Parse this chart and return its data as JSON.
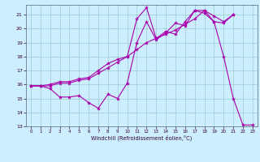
{
  "xlabel": "Windchill (Refroidissement éolien,°C)",
  "bg_color": "#cceeff",
  "line_color": "#aa00aa",
  "grid_color": "#99cccc",
  "xlim": [
    -0.5,
    23.5
  ],
  "ylim": [
    13,
    21.7
  ],
  "yticks": [
    13,
    14,
    15,
    16,
    17,
    18,
    19,
    20,
    21
  ],
  "xticks": [
    0,
    1,
    2,
    3,
    4,
    5,
    6,
    7,
    8,
    9,
    10,
    11,
    12,
    13,
    14,
    15,
    16,
    17,
    18,
    19,
    20,
    21,
    22,
    23
  ],
  "s1_x": [
    0,
    1,
    2,
    3,
    4,
    5,
    6,
    7,
    8,
    9,
    10,
    11,
    12,
    13,
    14,
    15,
    16,
    17,
    18,
    19,
    20,
    21,
    22,
    23
  ],
  "s1_y": [
    15.9,
    15.9,
    15.7,
    15.1,
    15.1,
    15.2,
    14.7,
    14.3,
    15.3,
    15.0,
    16.1,
    19.0,
    20.5,
    19.2,
    19.7,
    20.4,
    20.2,
    21.3,
    21.1,
    20.5,
    18.0,
    15.0,
    13.1,
    13.1
  ],
  "s2_x": [
    0,
    1,
    2,
    3,
    4,
    5,
    6,
    7,
    8,
    9,
    10,
    11,
    12,
    13,
    14,
    15,
    16,
    17,
    18,
    19,
    20,
    21
  ],
  "s2_y": [
    15.9,
    15.9,
    16.0,
    16.2,
    16.2,
    16.4,
    16.5,
    17.0,
    17.5,
    17.8,
    18.0,
    20.7,
    21.5,
    19.3,
    19.8,
    19.6,
    20.5,
    21.3,
    21.3,
    20.5,
    20.4,
    21.0
  ],
  "s3_x": [
    0,
    1,
    2,
    3,
    4,
    5,
    6,
    7,
    8,
    9,
    10,
    11,
    12,
    13,
    14,
    15,
    16,
    17,
    18,
    19,
    20,
    21
  ],
  "s3_y": [
    15.9,
    15.9,
    15.9,
    16.1,
    16.1,
    16.3,
    16.4,
    16.8,
    17.2,
    17.6,
    18.0,
    18.5,
    19.0,
    19.3,
    19.6,
    19.9,
    20.3,
    20.7,
    21.3,
    20.9,
    20.5,
    21.0
  ]
}
